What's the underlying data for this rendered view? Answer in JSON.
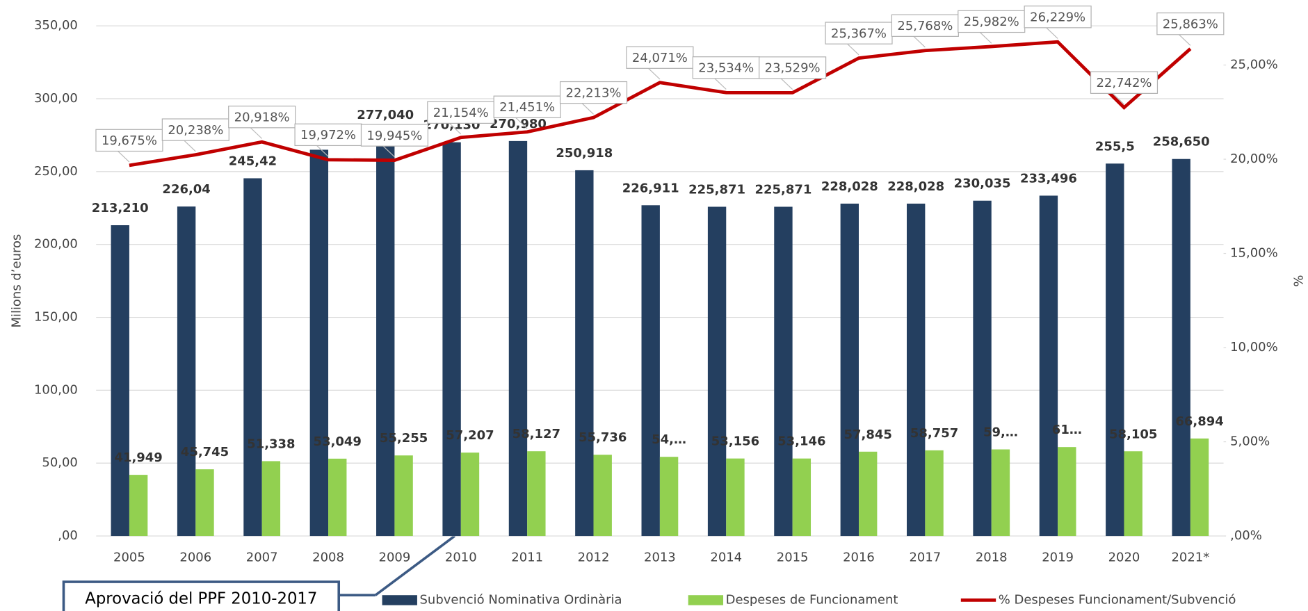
{
  "chart_data": {
    "type": "bar",
    "y_label": "Milions d’euros",
    "y2_label": "%",
    "annotation": "Aprovació del PPF 2010-2017",
    "categories": [
      "2005",
      "2006",
      "2007",
      "2008",
      "2009",
      "2010",
      "2011",
      "2012",
      "2013",
      "2014",
      "2015",
      "2016",
      "2017",
      "2018",
      "2019",
      "2020",
      "2021*"
    ],
    "series": [
      {
        "name": "Subvenció Nominativa Ordinària",
        "color": "#243f60",
        "kind": "bar",
        "values": [
          213.21,
          226.04,
          245.42,
          265,
          277.04,
          270.13,
          270.98,
          250.918,
          226.911,
          225.871,
          225.871,
          228.028,
          228.028,
          230.035,
          233.496,
          255.5,
          258.65
        ],
        "value_labels": [
          "213,210",
          "226,04",
          "245,42",
          null,
          "277,040",
          "270,130",
          "270,980",
          "250,918",
          "226,911",
          "225,871",
          "225,871",
          "228,028",
          "228,028",
          "230,035",
          "233,496",
          "255,5",
          "258,650"
        ]
      },
      {
        "name": "Despeses de Funcionament",
        "color": "#92d050",
        "kind": "bar",
        "values": [
          41.949,
          45.745,
          51.338,
          53.049,
          55.255,
          57.207,
          58.127,
          55.736,
          54.3,
          53.156,
          53.146,
          57.845,
          58.757,
          59.4,
          61,
          58.105,
          66.894
        ],
        "value_labels": [
          "41,949",
          "45,745",
          "51,338",
          "53,049",
          "55,255",
          "57,207",
          "58,127",
          "55,736",
          "54,…",
          "53,156",
          "53,146",
          "57,845",
          "58,757",
          "59,…",
          "61…",
          "58,105",
          "66,894"
        ]
      },
      {
        "name": "% Despeses Funcionament/Subvenció",
        "color": "#c00000",
        "kind": "line",
        "axis": "y2",
        "values": [
          19.675,
          20.238,
          20.918,
          19.972,
          19.945,
          21.154,
          21.451,
          22.213,
          24.071,
          23.534,
          23.529,
          25.367,
          25.768,
          25.982,
          26.229,
          22.742,
          25.863
        ],
        "value_labels": [
          "19,675%",
          "20,238%",
          "20,918%",
          "19,972%",
          "19,945%",
          "21,154%",
          "21,451%",
          "22,213%",
          "24,071%",
          "23,534%",
          "23,529%",
          "25,367%",
          "25,768%",
          "25,982%",
          "26,229%",
          "22,742%",
          "25,863%"
        ]
      }
    ],
    "ylim": [
      0,
      350
    ],
    "yticks": [
      {
        "value": 0,
        "label": ",00"
      },
      {
        "value": 50,
        "label": "50,00"
      },
      {
        "value": 100,
        "label": "100,00"
      },
      {
        "value": 150,
        "label": "150,00"
      },
      {
        "value": 200,
        "label": "200,00"
      },
      {
        "value": 250,
        "label": "250,00"
      },
      {
        "value": 300,
        "label": "300,00"
      },
      {
        "value": 350,
        "label": "350,00"
      }
    ],
    "y2lim": [
      0,
      27.08
    ],
    "y2ticks": [
      {
        "value": 0,
        "label": ",00%"
      },
      {
        "value": 5,
        "label": "5,00%"
      },
      {
        "value": 10,
        "label": "10,00%"
      },
      {
        "value": 15,
        "label": "15,00%"
      },
      {
        "value": 20,
        "label": "20,00%"
      },
      {
        "value": 25,
        "label": "25,00%"
      }
    ],
    "grid": true
  }
}
